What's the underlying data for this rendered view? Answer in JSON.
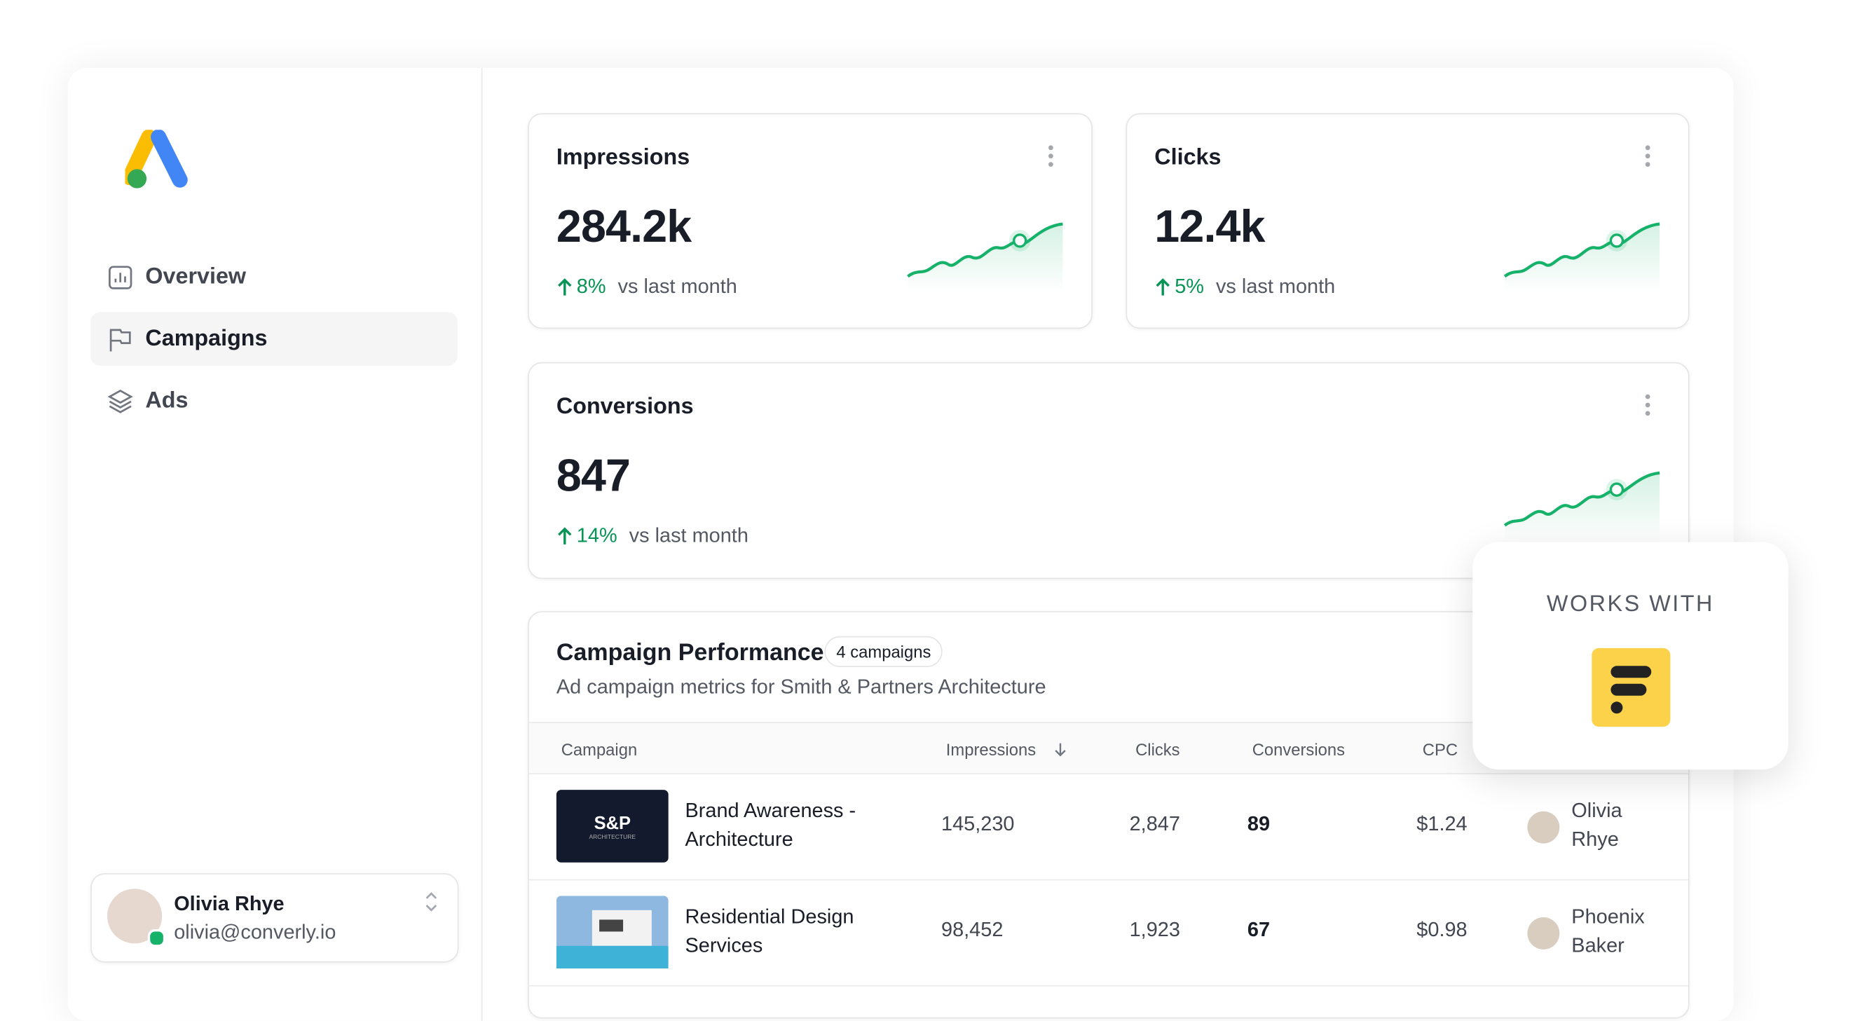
{
  "sidebar": {
    "nav": [
      "Overview",
      "Campaigns",
      "Ads"
    ],
    "user": {
      "name": "Olivia Rhye",
      "email": "olivia@converly.io"
    }
  },
  "cards": [
    {
      "title": "Impressions",
      "value": "284.2k",
      "change": "8%",
      "comparison": "vs last month"
    },
    {
      "title": "Clicks",
      "value": "12.4k",
      "change": "5%",
      "comparison": "vs last month"
    },
    {
      "title": "Conversions",
      "value": "847",
      "change": "14%",
      "comparison": "vs last month"
    }
  ],
  "table": {
    "title": "Campaign Performance",
    "badge": "4 campaigns",
    "subtitle": "Ad campaign metrics for Smith & Partners Architecture",
    "columns": [
      "Campaign",
      "Impressions",
      "Clicks",
      "Conversions",
      "CPC"
    ],
    "rows": [
      {
        "logo": {
          "title": "S&P",
          "subtitle": "ARCHITECTURE"
        },
        "campaign": "Brand Awareness - Architecture",
        "impressions": "145,230",
        "clicks": "2,847",
        "conversions": "89",
        "cpc": "$1.24",
        "owner": "Olivia Rhye"
      },
      {
        "campaign": "Residential Design Services",
        "impressions": "98,452",
        "clicks": "1,923",
        "conversions": "67",
        "cpc": "$0.98",
        "owner": "Phoenix Baker"
      }
    ]
  },
  "works_with": {
    "label": "WORKS WITH"
  }
}
